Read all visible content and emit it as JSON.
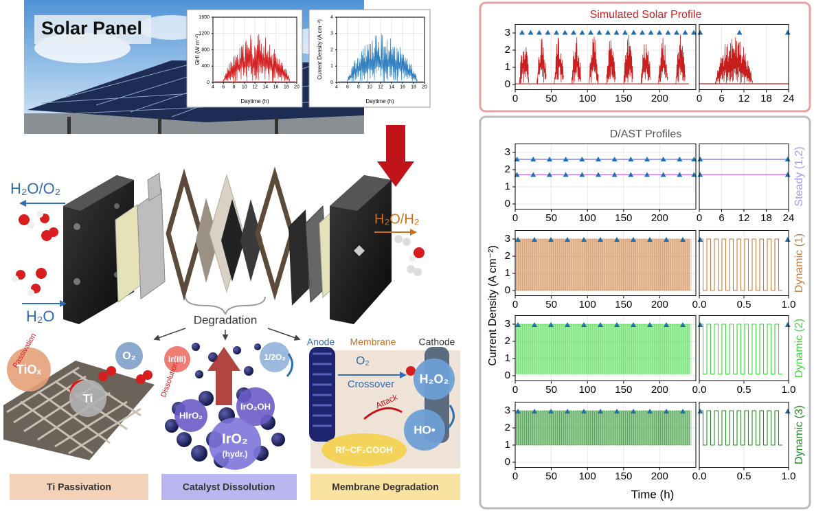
{
  "solar_panel": {
    "label": "Solar Panel",
    "ghi_chart": {
      "ylabel": "GHI (W m⁻²)",
      "xlabel": "Daytime (h)",
      "xlim": [
        4,
        20
      ],
      "ylim": [
        0,
        1600
      ],
      "xticks": [
        4,
        6,
        8,
        10,
        12,
        14,
        16,
        18,
        20
      ],
      "yticks": [
        0,
        400,
        800,
        1200,
        1600
      ],
      "grid": true
    },
    "current_chart": {
      "ylabel": "Current Density (A cm⁻²)",
      "xlabel": "Daytime (h)",
      "xlim": [
        4,
        20
      ],
      "ylim": [
        0,
        4
      ],
      "xticks": [
        4,
        6,
        8,
        10,
        12,
        14,
        16,
        18,
        20
      ],
      "yticks": [
        0,
        1,
        2,
        3,
        4
      ],
      "grid": true
    }
  },
  "electrolyzer": {
    "outlet_anode": "H₂O/O₂",
    "outlet_cathode": "H₂O/H₂",
    "inlet": "H₂O",
    "degradation": "Degradation"
  },
  "mechanisms": {
    "ti": {
      "title": "Ti Passivation",
      "passivation": "Passivation",
      "tiox": "TiOₓ",
      "ti": "Ti",
      "o2": "O₂"
    },
    "catalyst": {
      "title": "Catalyst Dissolution",
      "ir3": "Ir(III)",
      "half_o2": "1/2O₂",
      "dissolution": "Dissolution",
      "hiro2": "HIrO₂",
      "iro2oh": "IrO₂OH",
      "iro2": "IrO₂",
      "hydr": "(hydr.)"
    },
    "membrane": {
      "title": "Membrane Degradation",
      "anode": "Anode",
      "membrane": "Membrane",
      "cathode": "Cathode",
      "o2": "O₂",
      "crossover": "Crossover",
      "h2o2": "H₂O₂",
      "attack": "Attack",
      "ho": "HO•",
      "acid": "Rf−CF₂COOH"
    }
  },
  "profiles": {
    "solar": {
      "title": "Simulated Solar Profile",
      "color": "#c81e1e",
      "plots": [
        {
          "xlim": [
            0,
            250
          ],
          "ylim": [
            -0.3,
            3.5
          ],
          "xticks": [
            0,
            50,
            100,
            150,
            200
          ],
          "yticks": [
            0,
            1,
            2,
            3
          ],
          "grid": true
        },
        {
          "xlim": [
            0,
            24
          ],
          "ylim": [
            -0.3,
            3.5
          ],
          "xticks": [
            0,
            6,
            12,
            18,
            24
          ],
          "grid": true
        }
      ]
    },
    "dast": {
      "title": "D/AST Profiles",
      "ylabel": "Current Density (A cm⁻²)",
      "xlabel": "Time (h)",
      "rows": [
        {
          "name": "Steady (1,2)",
          "color": "#9b9bf5",
          "levels": [
            2.6,
            1.7
          ],
          "level_colors": [
            "#6c6cf0",
            "#b46ee6"
          ],
          "plots": [
            {
              "xlim": [
                0,
                250
              ],
              "ylim": [
                -0.3,
                3.5
              ],
              "xticks": [
                0,
                50,
                100,
                150,
                200
              ],
              "yticks": [
                0,
                1,
                2,
                3
              ],
              "grid": true
            },
            {
              "xlim": [
                0,
                24
              ],
              "ylim": [
                -0.3,
                3.5
              ],
              "xticks": [
                0,
                6,
                12,
                18,
                24
              ],
              "grid": true
            }
          ]
        },
        {
          "name": "Dynamic (1)",
          "color": "#c87a3a",
          "range": [
            0,
            3
          ],
          "plots": [
            {
              "xlim": [
                0,
                250
              ],
              "ylim": [
                -0.3,
                3.5
              ],
              "xticks": [
                0,
                50,
                100,
                150,
                200
              ],
              "yticks": [
                0,
                1,
                2,
                3
              ],
              "grid": true
            },
            {
              "xlim": [
                0,
                1
              ],
              "ylim": [
                -0.3,
                3.5
              ],
              "xticks": [
                {
                  "value": 0,
                  "label": "0.0"
                },
                0.5,
                {
                  "value": 1,
                  "label": "1.0"
                }
              ],
              "grid": true
            }
          ]
        },
        {
          "name": "Dynamic (2)",
          "color": "#3cd83c",
          "range": [
            0.1,
            3
          ],
          "plots": [
            {
              "xlim": [
                0,
                250
              ],
              "ylim": [
                -0.3,
                3.5
              ],
              "xticks": [
                0,
                50,
                100,
                150,
                200
              ],
              "yticks": [
                0,
                1,
                2,
                3
              ],
              "grid": true
            },
            {
              "xlim": [
                0,
                1
              ],
              "ylim": [
                -0.3,
                3.5
              ],
              "xticks": [
                {
                  "value": 0,
                  "label": "0.0"
                },
                0.5,
                {
                  "value": 1,
                  "label": "1.0"
                }
              ],
              "grid": true
            }
          ]
        },
        {
          "name": "Dynamic (3)",
          "color": "#1f8a1f",
          "range": [
            1,
            3
          ],
          "plots": [
            {
              "xlim": [
                0,
                250
              ],
              "ylim": [
                -0.3,
                3.5
              ],
              "xticks": [
                0,
                50,
                100,
                150,
                200
              ],
              "yticks": [
                0,
                1,
                2,
                3
              ],
              "grid": true
            },
            {
              "xlim": [
                0,
                1
              ],
              "ylim": [
                -0.3,
                3.5
              ],
              "xticks": [
                {
                  "value": 0,
                  "label": "0.0"
                },
                0.5,
                {
                  "value": 1,
                  "label": "1.0"
                }
              ],
              "grid": true
            }
          ]
        }
      ]
    }
  }
}
